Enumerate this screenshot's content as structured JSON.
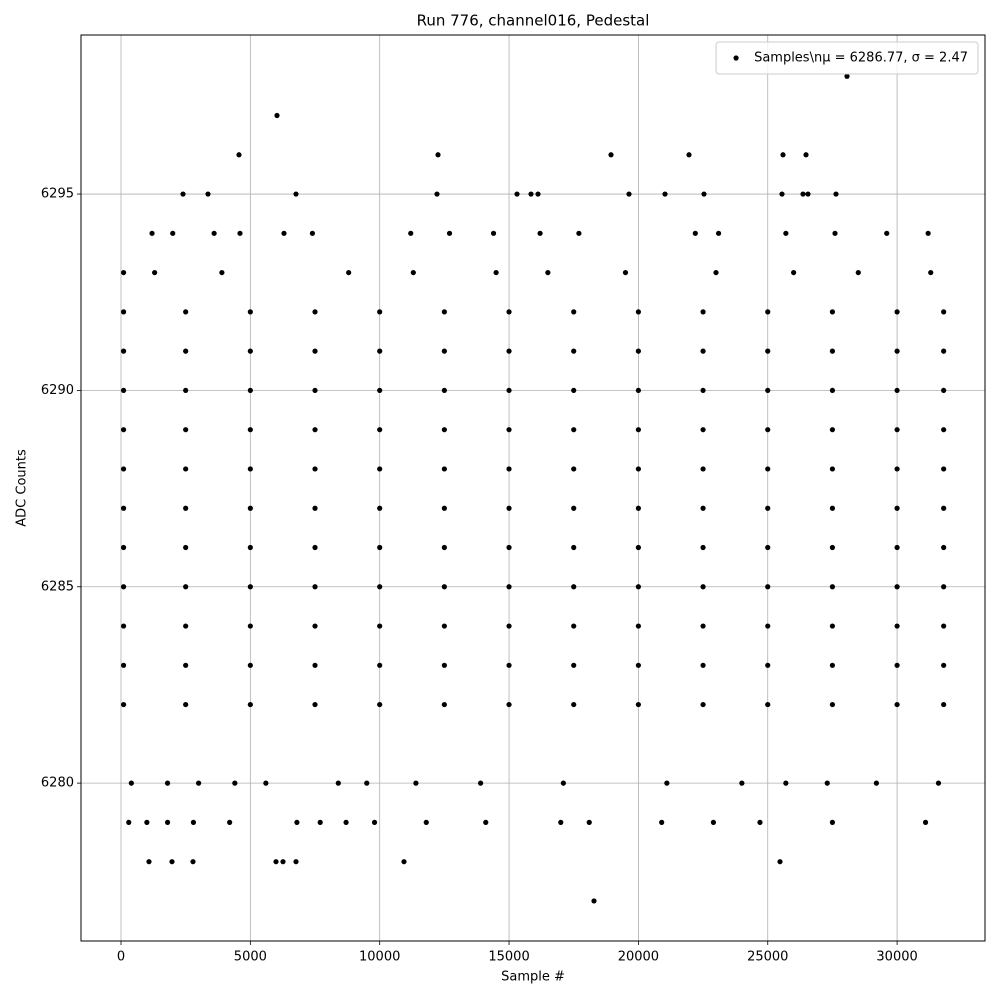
{
  "chart_data": {
    "type": "scatter",
    "title": "Run 776, channel016, Pedestal",
    "x_label": "Sample #",
    "y_label": "ADC Counts",
    "xlim": [
      -1546,
      33398
    ],
    "ylim": [
      6275.98,
      6299.05
    ],
    "xticks": [
      0,
      5000,
      10000,
      15000,
      20000,
      25000,
      30000
    ],
    "yticks": [
      6280,
      6285,
      6290,
      6295
    ],
    "grid": true,
    "legend": "upper right",
    "series": [
      {
        "name": "Samples\\nμ = 6286.77, σ = 2.47",
        "color": "#000000",
        "x": [
          28064,
          6030,
          4561,
          12254,
          18941,
          21956,
          25590,
          26479,
          2397,
          3363,
          6765,
          12215,
          15308,
          15849,
          16119,
          19637,
          21029,
          22536,
          25551,
          26363,
          26556,
          27638,
          18284,
          1082,
          1971,
          2783,
          5992,
          6262,
          6765,
          10939,
          25474,
          100,
          2500,
          5000,
          7500,
          10000,
          12500,
          15000,
          17500,
          20000,
          22500,
          25000,
          27500,
          30000,
          31800,
          100,
          2500,
          5000,
          7500,
          10000,
          12500,
          15000,
          17500,
          20000,
          22500,
          25000,
          27500,
          30000,
          31800,
          100,
          2500,
          5000,
          7500,
          10000,
          12500,
          15000,
          17500,
          20000,
          22500,
          25000,
          27500,
          30000,
          31800,
          100,
          2500,
          5000,
          7500,
          10000,
          12500,
          15000,
          17500,
          20000,
          22500,
          25000,
          27500,
          30000,
          31800,
          100,
          2500,
          5000,
          7500,
          10000,
          12500,
          15000,
          17500,
          20000,
          22500,
          25000,
          27500,
          30000,
          31800,
          100,
          2500,
          5000,
          7500,
          10000,
          12500,
          15000,
          17500,
          20000,
          22500,
          25000,
          27500,
          30000,
          31800,
          100,
          2500,
          5000,
          7500,
          10000,
          12500,
          15000,
          17500,
          20000,
          22500,
          25000,
          27500,
          30000,
          31800,
          100,
          2500,
          5000,
          7500,
          10000,
          12500,
          15000,
          17500,
          20000,
          22500,
          25000,
          27500,
          30000,
          31800,
          100,
          2500,
          5000,
          7500,
          10000,
          12500,
          15000,
          17500,
          20000,
          22500,
          25000,
          27500,
          30000,
          31800,
          100,
          2500,
          5000,
          7500,
          10000,
          12500,
          15000,
          17500,
          20000,
          22500,
          25000,
          27500,
          30000,
          31800,
          100,
          2500,
          5000,
          7500,
          10000,
          12500,
          15000,
          17500,
          20000,
          22500,
          25000,
          27500,
          30000,
          31800,
          100,
          1300,
          3900,
          8800,
          11300,
          14500,
          16500,
          19500,
          23000,
          26000,
          28500,
          31300,
          1200,
          2000,
          3600,
          4600,
          6300,
          7400,
          11200,
          12700,
          14400,
          16200,
          17700,
          22200,
          23100,
          25700,
          27600,
          29600,
          31200,
          400,
          1800,
          3000,
          4400,
          5600,
          8400,
          9500,
          11400,
          13900,
          17100,
          21100,
          24000,
          25700,
          27300,
          29200,
          31600,
          300,
          1000,
          1800,
          2800,
          4200,
          6800,
          7700,
          8700,
          9800,
          11800,
          14100,
          17000,
          18100,
          20900,
          22900,
          24700,
          27500,
          31100
        ],
        "values": [
          6298,
          6297,
          6296,
          6296,
          6296,
          6296,
          6296,
          6296,
          6295,
          6295,
          6295,
          6295,
          6295,
          6295,
          6295,
          6295,
          6295,
          6295,
          6295,
          6295,
          6295,
          6295,
          6277,
          6278,
          6278,
          6278,
          6278,
          6278,
          6278,
          6278,
          6278,
          6292,
          6292,
          6292,
          6292,
          6292,
          6292,
          6292,
          6292,
          6292,
          6292,
          6292,
          6292,
          6292,
          6292,
          6291,
          6291,
          6291,
          6291,
          6291,
          6291,
          6291,
          6291,
          6291,
          6291,
          6291,
          6291,
          6291,
          6291,
          6290,
          6290,
          6290,
          6290,
          6290,
          6290,
          6290,
          6290,
          6290,
          6290,
          6290,
          6290,
          6290,
          6290,
          6289,
          6289,
          6289,
          6289,
          6289,
          6289,
          6289,
          6289,
          6289,
          6289,
          6289,
          6289,
          6289,
          6289,
          6288,
          6288,
          6288,
          6288,
          6288,
          6288,
          6288,
          6288,
          6288,
          6288,
          6288,
          6288,
          6288,
          6288,
          6287,
          6287,
          6287,
          6287,
          6287,
          6287,
          6287,
          6287,
          6287,
          6287,
          6287,
          6287,
          6287,
          6287,
          6286,
          6286,
          6286,
          6286,
          6286,
          6286,
          6286,
          6286,
          6286,
          6286,
          6286,
          6286,
          6286,
          6286,
          6285,
          6285,
          6285,
          6285,
          6285,
          6285,
          6285,
          6285,
          6285,
          6285,
          6285,
          6285,
          6285,
          6285,
          6284,
          6284,
          6284,
          6284,
          6284,
          6284,
          6284,
          6284,
          6284,
          6284,
          6284,
          6284,
          6284,
          6284,
          6283,
          6283,
          6283,
          6283,
          6283,
          6283,
          6283,
          6283,
          6283,
          6283,
          6283,
          6283,
          6283,
          6283,
          6282,
          6282,
          6282,
          6282,
          6282,
          6282,
          6282,
          6282,
          6282,
          6282,
          6282,
          6282,
          6282,
          6282,
          6293,
          6293,
          6293,
          6293,
          6293,
          6293,
          6293,
          6293,
          6293,
          6293,
          6293,
          6293,
          6294,
          6294,
          6294,
          6294,
          6294,
          6294,
          6294,
          6294,
          6294,
          6294,
          6294,
          6294,
          6294,
          6294,
          6294,
          6294,
          6294,
          6280,
          6280,
          6280,
          6280,
          6280,
          6280,
          6280,
          6280,
          6280,
          6280,
          6280,
          6280,
          6280,
          6280,
          6280,
          6280,
          6279,
          6279,
          6279,
          6279,
          6279,
          6279,
          6279,
          6279,
          6279,
          6279,
          6279,
          6279,
          6279,
          6279,
          6279,
          6279,
          6279,
          6279
        ]
      }
    ]
  }
}
